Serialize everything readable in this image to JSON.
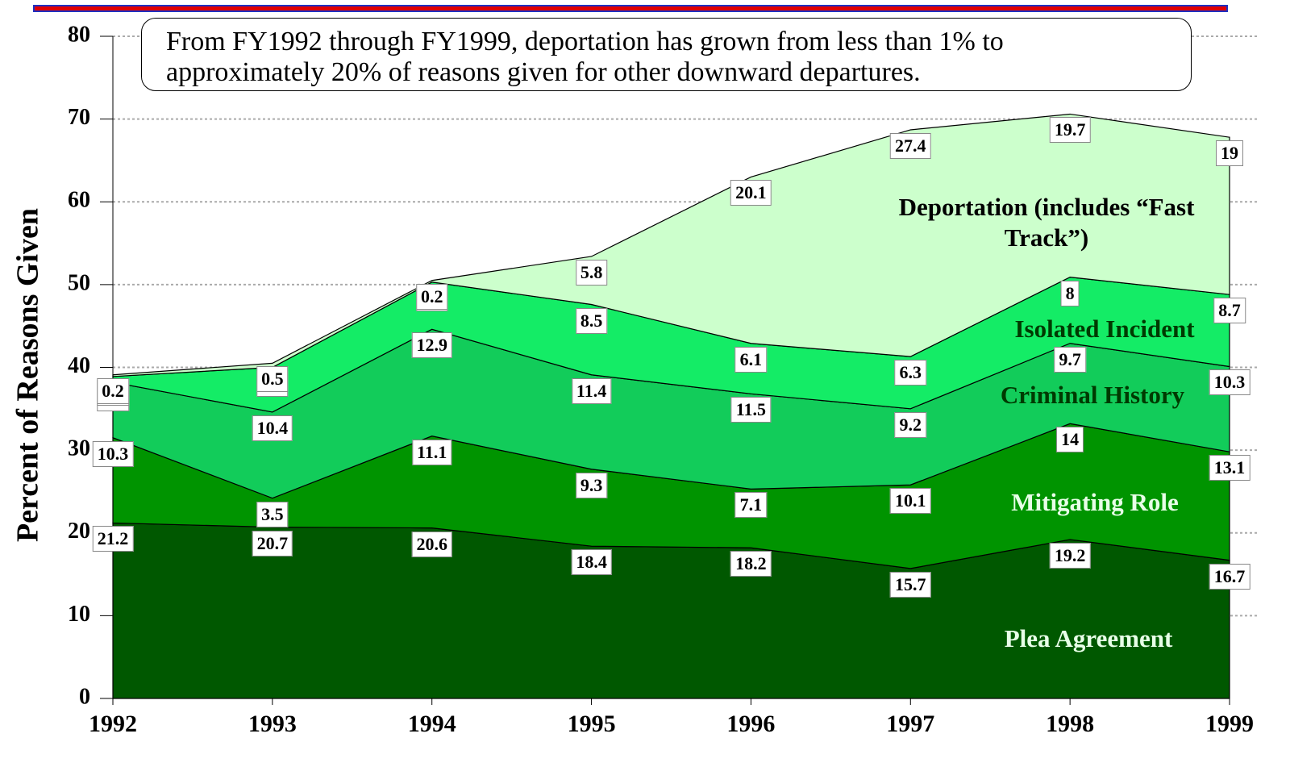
{
  "chart_data": {
    "type": "stacked_area",
    "annotation": [
      "From FY1992 through FY1999, deportation has grown from less than 1% to",
      "approximately 20% of reasons given for other downward departures."
    ],
    "y_label": "Percent of Reasons Given",
    "categories": [
      "1992",
      "1993",
      "1994",
      "1995",
      "1996",
      "1997",
      "1998",
      "1999"
    ],
    "series": [
      {
        "name": "Plea Agreement",
        "color": "#005800",
        "values": [
          21.2,
          20.7,
          20.6,
          18.4,
          18.2,
          15.7,
          19.2,
          16.7
        ]
      },
      {
        "name": "Mitigating Role",
        "color": "#009400",
        "values": [
          10.3,
          3.5,
          11.1,
          9.3,
          7.1,
          10.1,
          14,
          13.1
        ]
      },
      {
        "name": "Criminal History",
        "color": "#12cc5a",
        "values": [
          6.7,
          10.4,
          12.9,
          11.4,
          11.5,
          9.2,
          9.7,
          10.3
        ]
      },
      {
        "name": "Isolated Incident",
        "color": "#14ec66",
        "values": [
          0.7,
          5.4,
          5.7,
          8.5,
          6.1,
          6.3,
          8,
          8.7
        ]
      },
      {
        "name": "Deportation (includes “Fast Track”)",
        "color": "#ccffcc",
        "values": [
          0.2,
          0.5,
          0.2,
          5.8,
          20.1,
          27.4,
          19.7,
          19
        ]
      }
    ],
    "ylim": [
      0,
      80
    ],
    "yticks": [
      0,
      10,
      20,
      30,
      40,
      50,
      60,
      70,
      80
    ],
    "grid": true
  }
}
